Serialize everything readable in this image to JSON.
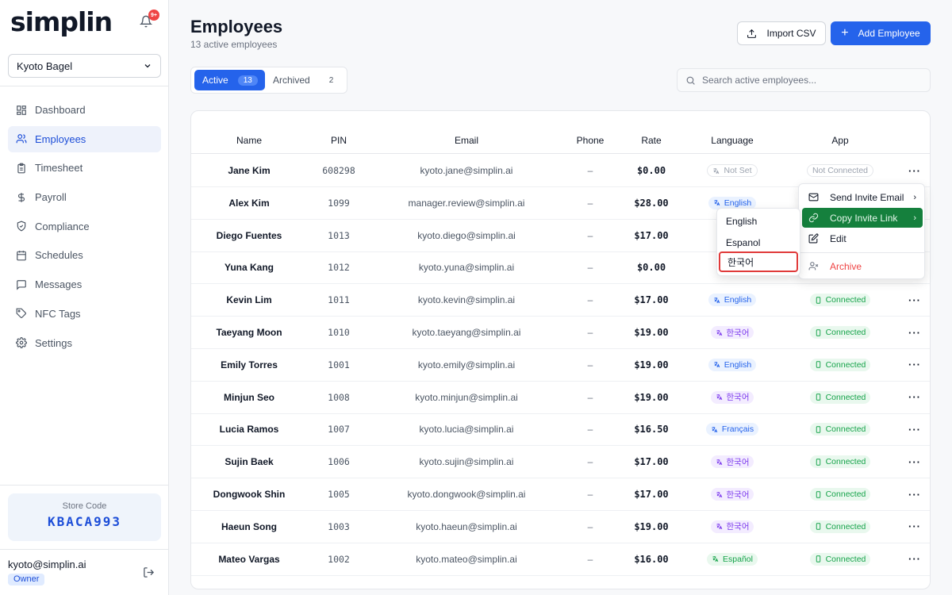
{
  "brand": {
    "logo": "simplin",
    "notif_badge": "9+"
  },
  "store_select": {
    "value": "Kyoto Bagel"
  },
  "nav": [
    {
      "label": "Dashboard",
      "icon": "grid-icon"
    },
    {
      "label": "Employees",
      "icon": "users-icon",
      "active": true
    },
    {
      "label": "Timesheet",
      "icon": "clipboard-icon"
    },
    {
      "label": "Payroll",
      "icon": "dollar-icon"
    },
    {
      "label": "Compliance",
      "icon": "shield-icon"
    },
    {
      "label": "Schedules",
      "icon": "calendar-icon"
    },
    {
      "label": "Messages",
      "icon": "message-icon"
    },
    {
      "label": "NFC Tags",
      "icon": "tag-icon"
    },
    {
      "label": "Settings",
      "icon": "gear-icon"
    }
  ],
  "store_code": {
    "label": "Store Code",
    "value": "KBACA993"
  },
  "user": {
    "email": "kyoto@simplin.ai",
    "role": "Owner"
  },
  "header": {
    "title": "Employees",
    "subtitle": "13 active employees",
    "import_label": "Import CSV",
    "add_label": "Add Employee"
  },
  "tabs": {
    "active": {
      "label": "Active",
      "count": "13"
    },
    "archived": {
      "label": "Archived",
      "count": "2"
    }
  },
  "search": {
    "placeholder": "Search active employees..."
  },
  "table": {
    "headers": [
      "Name",
      "PIN",
      "Email",
      "Phone",
      "Rate",
      "Language",
      "App"
    ],
    "rows": [
      {
        "name": "Jane Kim",
        "pin": "608298",
        "email": "kyoto.jane@simplin.ai",
        "phone": "–",
        "rate": "$0.00",
        "lang": "Not Set",
        "lang_kind": "none",
        "app": "Not Connected",
        "app_kind": "not"
      },
      {
        "name": "Alex Kim",
        "pin": "1099",
        "email": "manager.review@simplin.ai",
        "phone": "–",
        "rate": "$28.00",
        "lang": "English",
        "lang_kind": "en",
        "app": "",
        "app_kind": "hidden"
      },
      {
        "name": "Diego Fuentes",
        "pin": "1013",
        "email": "kyoto.diego@simplin.ai",
        "phone": "–",
        "rate": "$17.00",
        "lang": "",
        "lang_kind": "hidden",
        "app": "",
        "app_kind": "hidden"
      },
      {
        "name": "Yuna Kang",
        "pin": "1012",
        "email": "kyoto.yuna@simplin.ai",
        "phone": "–",
        "rate": "$0.00",
        "lang": "",
        "lang_kind": "hidden",
        "app": "",
        "app_kind": "hidden"
      },
      {
        "name": "Kevin Lim",
        "pin": "1011",
        "email": "kyoto.kevin@simplin.ai",
        "phone": "–",
        "rate": "$17.00",
        "lang": "English",
        "lang_kind": "en",
        "app": "Connected",
        "app_kind": "conn"
      },
      {
        "name": "Taeyang Moon",
        "pin": "1010",
        "email": "kyoto.taeyang@simplin.ai",
        "phone": "–",
        "rate": "$19.00",
        "lang": "한국어",
        "lang_kind": "ko",
        "app": "Connected",
        "app_kind": "conn"
      },
      {
        "name": "Emily Torres",
        "pin": "1001",
        "email": "kyoto.emily@simplin.ai",
        "phone": "–",
        "rate": "$19.00",
        "lang": "English",
        "lang_kind": "en",
        "app": "Connected",
        "app_kind": "conn"
      },
      {
        "name": "Minjun Seo",
        "pin": "1008",
        "email": "kyoto.minjun@simplin.ai",
        "phone": "–",
        "rate": "$19.00",
        "lang": "한국어",
        "lang_kind": "ko",
        "app": "Connected",
        "app_kind": "conn"
      },
      {
        "name": "Lucia Ramos",
        "pin": "1007",
        "email": "kyoto.lucia@simplin.ai",
        "phone": "–",
        "rate": "$16.50",
        "lang": "Français",
        "lang_kind": "fr",
        "app": "Connected",
        "app_kind": "conn"
      },
      {
        "name": "Sujin Baek",
        "pin": "1006",
        "email": "kyoto.sujin@simplin.ai",
        "phone": "–",
        "rate": "$17.00",
        "lang": "한국어",
        "lang_kind": "ko",
        "app": "Connected",
        "app_kind": "conn"
      },
      {
        "name": "Dongwook Shin",
        "pin": "1005",
        "email": "kyoto.dongwook@simplin.ai",
        "phone": "–",
        "rate": "$17.00",
        "lang": "한국어",
        "lang_kind": "ko",
        "app": "Connected",
        "app_kind": "conn"
      },
      {
        "name": "Haeun Song",
        "pin": "1003",
        "email": "kyoto.haeun@simplin.ai",
        "phone": "–",
        "rate": "$19.00",
        "lang": "한국어",
        "lang_kind": "ko",
        "app": "Connected",
        "app_kind": "conn"
      },
      {
        "name": "Mateo Vargas",
        "pin": "1002",
        "email": "kyoto.mateo@simplin.ai",
        "phone": "–",
        "rate": "$16.00",
        "lang": "Español",
        "lang_kind": "es",
        "app": "Connected",
        "app_kind": "conn"
      }
    ],
    "more_label": "···"
  },
  "action_menu": {
    "send_invite": "Send Invite Email",
    "copy_invite": "Copy Invite Link",
    "edit": "Edit",
    "archive": "Archive"
  },
  "language_menu": {
    "options": [
      "English",
      "Espanol",
      "한국어"
    ],
    "focused": "한국어"
  },
  "colors": {
    "accent": "#2563eb",
    "success": "#16a34a",
    "danger": "#ef4444",
    "korean": "#7c3aed"
  }
}
